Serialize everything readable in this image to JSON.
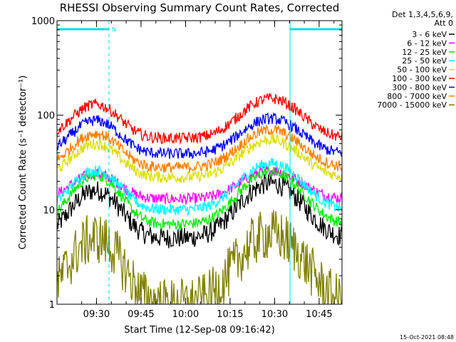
{
  "chart_data": {
    "type": "line",
    "title": "RHESSI Observing Summary Count Rates, Corrected",
    "xlabel": "Start Time (12-Sep-08 09:16:42)",
    "ylabel": "Corrected Count Rate (s⁻¹ detector⁻¹)",
    "yscale": "log",
    "ylim": [
      1,
      1000
    ],
    "xlim_minutes": [
      0,
      96
    ],
    "x_ticks": [
      {
        "label": "09:30",
        "t": 13.3
      },
      {
        "label": "09:45",
        "t": 28.3
      },
      {
        "label": "10:00",
        "t": 43.3
      },
      {
        "label": "10:15",
        "t": 58.3
      },
      {
        "label": "10:30",
        "t": 73.3
      },
      {
        "label": "10:45",
        "t": 88.3
      }
    ],
    "y_ticks": [
      {
        "label": "1",
        "v": 1
      },
      {
        "label": "10",
        "v": 10
      },
      {
        "label": "100",
        "v": 100
      },
      {
        "label": "1000",
        "v": 1000
      }
    ],
    "legend_header": [
      "Det 1,3,4,5,6,9,",
      "Att 0"
    ],
    "legend_placement": "right",
    "series": [
      {
        "name": "3 - 6 keV",
        "color": "#000000",
        "base": 5.0,
        "peaks": [
          16,
          19
        ]
      },
      {
        "name": "6 - 12 keV",
        "color": "#ff00ff",
        "base": 13,
        "peaks": [
          24,
          26
        ]
      },
      {
        "name": "12 - 25 keV",
        "color": "#00ee00",
        "base": 7,
        "peaks": [
          23,
          25
        ]
      },
      {
        "name": "25 - 50 keV",
        "color": "#00ffff",
        "base": 10,
        "peaks": [
          26,
          31
        ]
      },
      {
        "name": "50 - 100 keV",
        "color": "#dddd00",
        "base": 22,
        "peaks": [
          50,
          55
        ]
      },
      {
        "name": "100 - 300 keV",
        "color": "#ff0000",
        "base": 57,
        "peaks": [
          130,
          150
        ]
      },
      {
        "name": "300 - 800 keV",
        "color": "#0000ff",
        "base": 39,
        "peaks": [
          88,
          92
        ]
      },
      {
        "name": "800 - 7000 keV",
        "color": "#ff8000",
        "base": 28,
        "peaks": [
          64,
          70
        ]
      },
      {
        "name": "7000 - 15000 keV",
        "color": "#808000",
        "base": 1,
        "peaks": [
          5,
          5.5
        ]
      }
    ],
    "night_bars": [
      {
        "from": 0,
        "to": 17.5,
        "label": "N"
      },
      {
        "from": 78.5,
        "to": 96
      }
    ],
    "eclipse_markers": [
      0,
      17.5,
      78.5,
      96
    ]
  },
  "footer_timestamp": "15-Oct-2021 08:48",
  "colors": {
    "marker": "#00e0e0"
  }
}
